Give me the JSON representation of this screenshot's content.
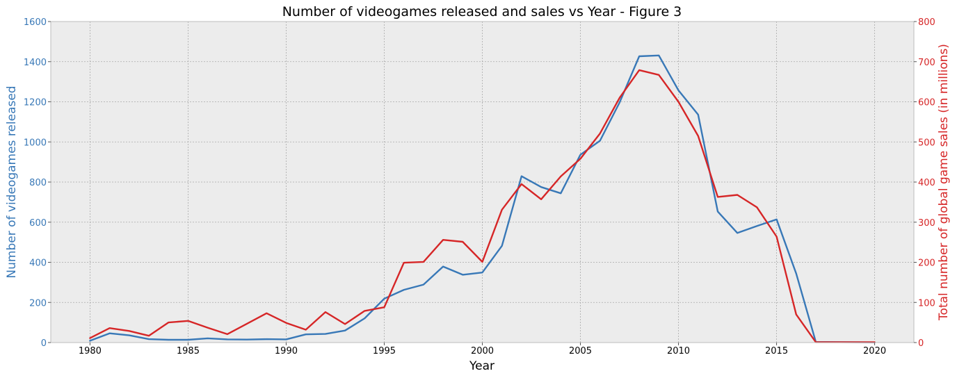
{
  "chart_data": {
    "type": "line",
    "title": "Number of videogames released and sales vs Year - Figure 3",
    "xlabel": "Year",
    "ylabel_left": "Number of videogames released",
    "ylabel_right": "Total number of global game sales (in millions)",
    "xlim": [
      1978,
      2022
    ],
    "ylim_left": [
      0,
      1600
    ],
    "ylim_right": [
      0,
      800
    ],
    "x_ticks": [
      1980,
      1985,
      1990,
      1995,
      2000,
      2005,
      2010,
      2015,
      2020
    ],
    "y_ticks_left": [
      0,
      200,
      400,
      600,
      800,
      1000,
      1200,
      1400,
      1600
    ],
    "y_ticks_right": [
      0,
      100,
      200,
      300,
      400,
      500,
      600,
      700,
      800
    ],
    "grid": true,
    "x": [
      1980,
      1981,
      1982,
      1983,
      1984,
      1985,
      1986,
      1987,
      1988,
      1989,
      1990,
      1991,
      1992,
      1993,
      1994,
      1995,
      1996,
      1997,
      1998,
      1999,
      2000,
      2001,
      2002,
      2003,
      2004,
      2005,
      2006,
      2007,
      2008,
      2009,
      2010,
      2011,
      2012,
      2013,
      2014,
      2015,
      2016,
      2017,
      2020
    ],
    "series": [
      {
        "axis": "left",
        "color": "#3878b7",
        "values": [
          9,
          46,
          36,
          17,
          14,
          14,
          21,
          16,
          15,
          17,
          16,
          41,
          43,
          60,
          121,
          219,
          263,
          289,
          379,
          338,
          349,
          482,
          829,
          775,
          744,
          936,
          1006,
          1197,
          1427,
          1431,
          1257,
          1136,
          653,
          546,
          581,
          614,
          344,
          3,
          1
        ]
      },
      {
        "axis": "right",
        "color": "#d62627",
        "values": [
          11,
          36,
          29,
          17,
          50,
          54,
          37,
          21,
          47,
          73,
          49,
          32,
          76,
          46,
          79,
          88,
          199,
          201,
          256,
          251,
          201,
          331,
          395,
          357,
          414,
          458,
          521,
          610,
          679,
          667,
          600,
          515,
          363,
          368,
          337,
          264,
          70,
          1,
          1
        ]
      }
    ]
  }
}
